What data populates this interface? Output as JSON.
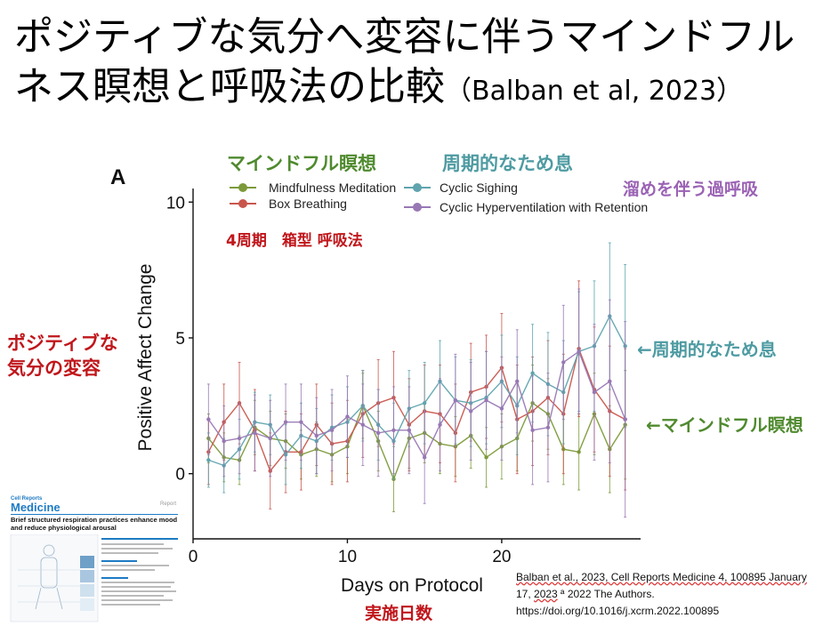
{
  "slide": {
    "title_main": "ポジティブな気分へ変容に伴うマインドフルネス瞑想と呼吸法の比較",
    "title_citation": "（Balban et al, 2023）"
  },
  "annotations": {
    "mindfulness_jp": "マインドフル瞑想",
    "cyclic_sighing_jp": "周期的なため息",
    "hyperventilation_jp": "溜めを伴う過呼吸",
    "box_breathing_jp": "4周期　箱型 呼吸法",
    "positive_mood_line1": "ポジティブな",
    "positive_mood_line2": "気分の変容",
    "arrow_cyclic": "←周期的なため息",
    "arrow_mindful": "←マインドフル瞑想",
    "days_jp": "実施日数"
  },
  "colors": {
    "mindfulness": "#7c9a3a",
    "box": "#c9564d",
    "cyclic_sighing": "#5fa4ae",
    "hyperventilation": "#9878b4",
    "annot_green": "#4f8a2e",
    "annot_teal": "#4e9ba2",
    "annot_purple": "#9a62b4",
    "annot_red": "#c0161b"
  },
  "citation": {
    "line1": "Balban et al., 2023, Cell Reports Medicine 4, 100895 January",
    "line2_pre": "17, ",
    "line2_year": "2023",
    "line2_post": " ª 2022 The Authors.",
    "line3": "https://doi.org/10.1016/j.xcrm.2022.100895"
  },
  "thumbnail": {
    "journal_small": "Cell Reports",
    "journal_big": "Medicine",
    "tag": "Report",
    "paper_title": "Brief structured respiration practices enhance mood and reduce physiological arousal"
  },
  "chart_data": {
    "type": "line",
    "panel_label": "A",
    "xlabel": "Days on Protocol",
    "ylabel": "Positive Affect Change",
    "xlim": [
      0,
      29
    ],
    "ylim": [
      -2.4,
      10.5
    ],
    "xticks": [
      0,
      10,
      20
    ],
    "yticks": [
      0,
      5,
      10
    ],
    "legend_position": "top",
    "grid": false,
    "x": [
      1,
      2,
      3,
      4,
      5,
      6,
      7,
      8,
      9,
      10,
      11,
      12,
      13,
      14,
      15,
      16,
      17,
      18,
      19,
      20,
      21,
      22,
      23,
      24,
      25,
      26,
      27,
      28
    ],
    "series": [
      {
        "name": "Mindfulness Meditation",
        "color": "#7c9a3a",
        "values": [
          1.3,
          0.6,
          0.5,
          1.7,
          1.3,
          1.2,
          0.7,
          0.9,
          0.7,
          1.0,
          2.5,
          1.2,
          -0.2,
          1.3,
          1.5,
          1.1,
          1.0,
          1.4,
          0.6,
          1.0,
          1.3,
          2.6,
          2.2,
          0.9,
          0.8,
          2.2,
          0.9,
          1.8
        ],
        "error": [
          0.9,
          0.9,
          0.9,
          1.0,
          1.0,
          1.0,
          0.9,
          1.0,
          1.0,
          1.0,
          1.2,
          1.1,
          1.2,
          1.1,
          1.1,
          1.1,
          1.1,
          1.2,
          1.1,
          1.2,
          1.2,
          1.4,
          1.3,
          1.3,
          1.4,
          1.5,
          1.6,
          2.0
        ]
      },
      {
        "name": "Box Breathing",
        "color": "#c9564d",
        "values": [
          0.8,
          1.9,
          2.6,
          1.6,
          0.1,
          0.8,
          0.8,
          1.8,
          1.1,
          1.2,
          2.2,
          2.6,
          2.8,
          1.8,
          2.3,
          2.2,
          1.5,
          3.0,
          3.2,
          3.9,
          2.0,
          2.3,
          2.8,
          2.2,
          4.6,
          3.1,
          2.3,
          2.0
        ],
        "error": [
          1.2,
          1.4,
          1.5,
          1.5,
          1.4,
          1.5,
          1.4,
          1.5,
          1.5,
          1.5,
          1.6,
          1.6,
          1.7,
          1.7,
          1.7,
          1.8,
          1.8,
          1.8,
          1.9,
          2.0,
          2.0,
          2.0,
          2.1,
          2.2,
          2.5,
          2.3,
          2.4,
          2.6
        ]
      },
      {
        "name": "Cyclic Sighing",
        "color": "#5fa4ae",
        "values": [
          0.5,
          0.3,
          0.9,
          1.9,
          1.8,
          0.7,
          1.4,
          1.2,
          1.7,
          1.9,
          2.5,
          1.8,
          1.2,
          2.4,
          2.6,
          3.4,
          2.7,
          2.6,
          2.8,
          3.4,
          2.5,
          3.7,
          3.3,
          3.0,
          4.5,
          4.7,
          5.8,
          4.7
        ],
        "error": [
          1.0,
          1.0,
          1.1,
          1.1,
          1.1,
          1.1,
          1.2,
          1.2,
          1.2,
          1.3,
          1.3,
          1.3,
          1.4,
          1.4,
          1.5,
          1.5,
          1.6,
          1.6,
          1.7,
          1.7,
          1.8,
          1.8,
          1.9,
          1.9,
          2.2,
          2.4,
          2.7,
          3.0
        ]
      },
      {
        "name": "Cyclic Hyperventilation with Retention",
        "color": "#9878b4",
        "values": [
          2.0,
          1.2,
          1.3,
          1.5,
          1.3,
          1.9,
          1.9,
          1.4,
          1.6,
          2.1,
          1.8,
          1.5,
          1.6,
          1.6,
          0.6,
          1.8,
          2.7,
          2.3,
          2.7,
          2.4,
          3.4,
          1.6,
          1.7,
          4.1,
          4.5,
          3.0,
          3.4,
          2.0
        ],
        "error": [
          1.3,
          1.3,
          1.3,
          1.4,
          1.4,
          1.4,
          1.4,
          1.4,
          1.5,
          1.5,
          1.5,
          1.6,
          1.6,
          1.6,
          1.7,
          1.7,
          1.7,
          1.8,
          1.8,
          1.9,
          1.9,
          2.0,
          2.0,
          2.1,
          2.3,
          2.5,
          3.0,
          3.6
        ]
      }
    ]
  }
}
